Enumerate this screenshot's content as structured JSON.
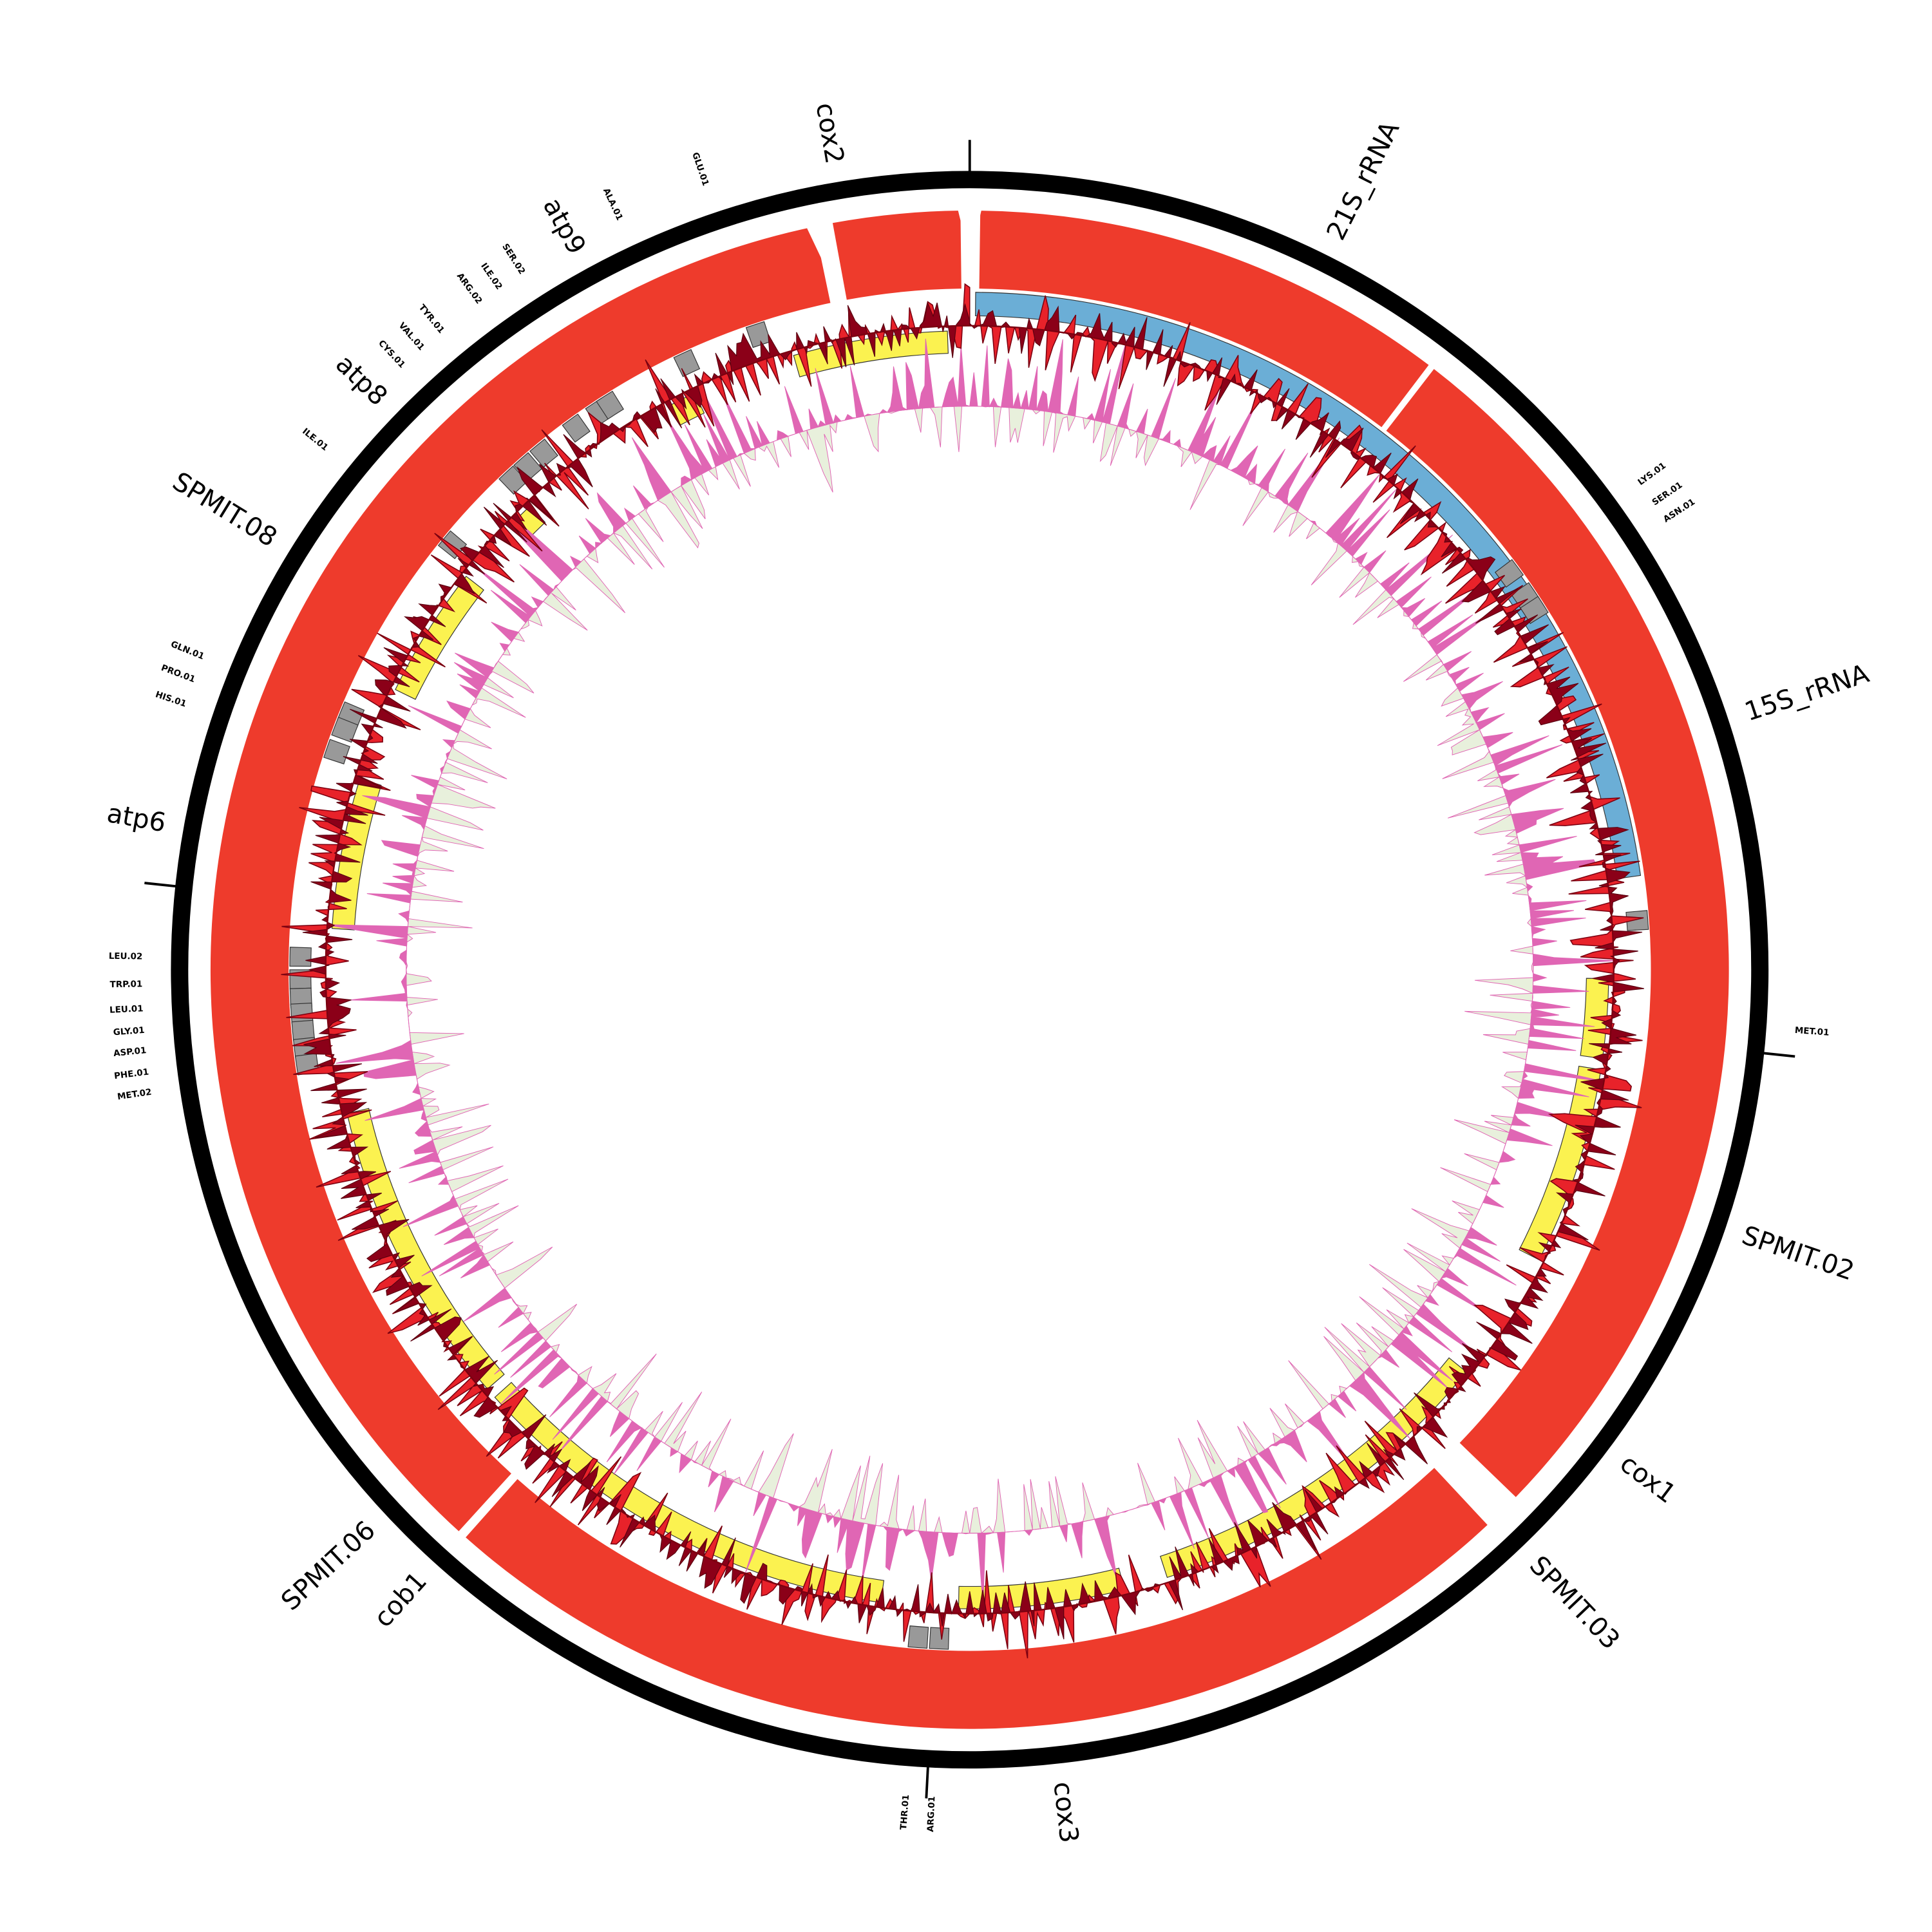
{
  "labels": {
    "genes": [
      "cox2",
      "21S_rRNA",
      "15S_rRNA",
      "SPMIT.02",
      "cox1",
      "SPMIT.03",
      "cox3",
      "cob1",
      "SPMIT.06",
      "atp6",
      "SPMIT.08",
      "atp8",
      "atp9"
    ],
    "trnas": [
      "GLU.01",
      "ALA.01",
      "SER.02",
      "ILE.02",
      "ARG.02",
      "TYR.01",
      "VAL.01",
      "CYS.01",
      "ILE.01",
      "LYS.01",
      "SER.01",
      "ASN.01",
      "GLN.01",
      "PRO.01",
      "HIS.01",
      "MET.01",
      "LEU.02",
      "TRP.01",
      "LEU.01",
      "GLY.01",
      "ASP.01",
      "PHE.01",
      "MET.02",
      "THR.01",
      "ARG.01"
    ]
  }
}
